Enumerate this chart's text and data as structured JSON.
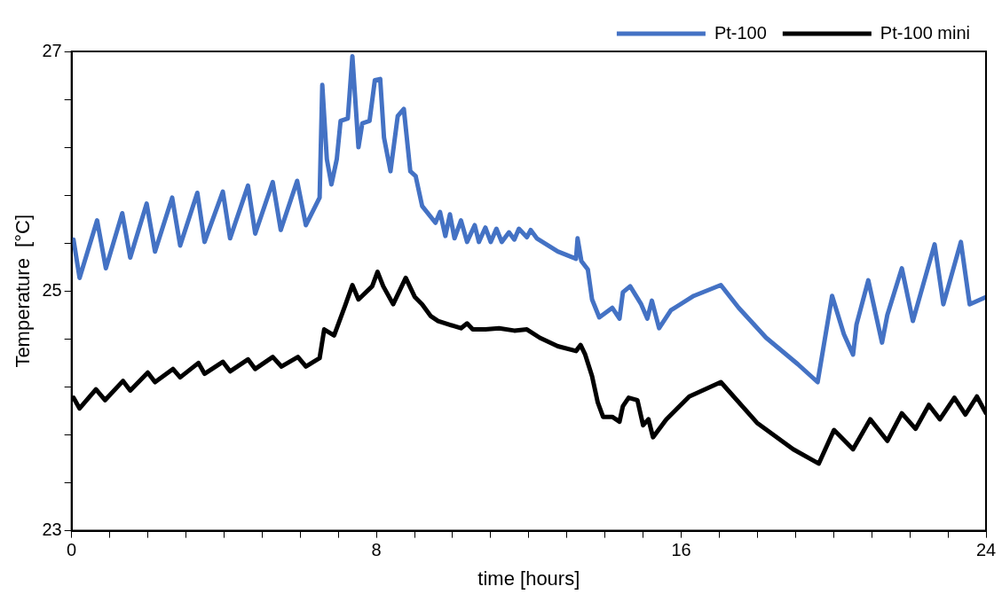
{
  "chart_data": {
    "type": "line",
    "xlabel": "time [hours]",
    "ylabel": "Temperature  [°C]",
    "xlim": [
      0,
      24
    ],
    "ylim": [
      23,
      27
    ],
    "xticks": [
      0,
      {
        "value": 1,
        "label": null
      },
      {
        "value": 2,
        "label": null
      },
      {
        "value": 3,
        "label": null
      },
      {
        "value": 4,
        "label": null
      },
      {
        "value": 5,
        "label": null
      },
      {
        "value": 6,
        "label": null
      },
      {
        "value": 7,
        "label": null
      },
      8,
      {
        "value": 9,
        "label": null
      },
      {
        "value": 10,
        "label": null
      },
      {
        "value": 11,
        "label": null
      },
      {
        "value": 12,
        "label": null
      },
      {
        "value": 13,
        "label": null
      },
      {
        "value": 14,
        "label": null
      },
      {
        "value": 15,
        "label": null
      },
      16,
      {
        "value": 17,
        "label": null
      },
      {
        "value": 18,
        "label": null
      },
      {
        "value": 19,
        "label": null
      },
      {
        "value": 20,
        "label": null
      },
      {
        "value": 21,
        "label": null
      },
      {
        "value": 22,
        "label": null
      },
      {
        "value": 23,
        "label": null
      },
      24
    ],
    "yticks": [
      23,
      {
        "value": 23.4,
        "label": null
      },
      {
        "value": 23.8,
        "label": null
      },
      {
        "value": 24.2,
        "label": null
      },
      {
        "value": 24.6,
        "label": null
      },
      25,
      {
        "value": 25.4,
        "label": null
      },
      {
        "value": 25.8,
        "label": null
      },
      {
        "value": 26.2,
        "label": null
      },
      {
        "value": 26.6,
        "label": null
      },
      27
    ],
    "grid": false,
    "legend": "top right",
    "marker": "none",
    "line_style": "solid",
    "series": [
      {
        "name": "Pt-100",
        "color": "#4472c4",
        "x": [
          0.05,
          0.21,
          0.67,
          0.9,
          1.33,
          1.54,
          1.97,
          2.19,
          2.64,
          2.85,
          3.3,
          3.49,
          3.97,
          4.16,
          4.63,
          4.82,
          5.28,
          5.49,
          5.92,
          6.15,
          6.51,
          6.58,
          6.7,
          6.82,
          6.96,
          7.06,
          7.25,
          7.37,
          7.53,
          7.63,
          7.82,
          7.96,
          8.1,
          8.2,
          8.37,
          8.56,
          8.72,
          8.89,
          9.03,
          9.2,
          9.55,
          9.67,
          9.81,
          9.93,
          10.05,
          10.22,
          10.38,
          10.58,
          10.69,
          10.86,
          11.0,
          11.15,
          11.29,
          11.48,
          11.62,
          11.74,
          11.95,
          12.05,
          12.21,
          12.76,
          13.24,
          13.28,
          13.38,
          13.55,
          13.66,
          13.85,
          14.19,
          14.38,
          14.47,
          14.66,
          14.95,
          15.11,
          15.23,
          15.42,
          15.73,
          16.33,
          17.04,
          17.51,
          18.23,
          19.06,
          19.58,
          19.96,
          20.27,
          20.51,
          20.6,
          20.91,
          21.27,
          21.41,
          21.79,
          22.08,
          22.65,
          22.88,
          23.34,
          23.57,
          24.0
        ],
        "values": [
          25.43,
          25.11,
          25.59,
          25.19,
          25.65,
          25.28,
          25.73,
          25.33,
          25.78,
          25.38,
          25.82,
          25.41,
          25.83,
          25.44,
          25.88,
          25.48,
          25.91,
          25.51,
          25.92,
          25.55,
          25.78,
          26.72,
          26.1,
          25.89,
          26.1,
          26.42,
          26.44,
          26.96,
          26.2,
          26.4,
          26.42,
          26.76,
          26.77,
          26.28,
          26.0,
          26.46,
          26.52,
          26.0,
          25.96,
          25.71,
          25.57,
          25.66,
          25.46,
          25.64,
          25.44,
          25.59,
          25.41,
          25.55,
          25.41,
          25.53,
          25.41,
          25.52,
          25.41,
          25.49,
          25.43,
          25.52,
          25.45,
          25.51,
          25.44,
          25.33,
          25.27,
          25.44,
          25.25,
          25.18,
          24.93,
          24.78,
          24.86,
          24.77,
          24.99,
          25.04,
          24.89,
          24.77,
          24.92,
          24.69,
          24.84,
          24.96,
          25.05,
          24.86,
          24.61,
          24.39,
          24.24,
          24.96,
          24.64,
          24.47,
          24.72,
          25.09,
          24.57,
          24.8,
          25.19,
          24.75,
          25.39,
          24.89,
          25.41,
          24.89,
          24.95
        ]
      },
      {
        "name": "Pt-100 mini",
        "color": "#000000",
        "x": [
          0.05,
          0.21,
          0.64,
          0.88,
          1.35,
          1.54,
          2.0,
          2.19,
          2.66,
          2.85,
          3.33,
          3.49,
          3.97,
          4.16,
          4.63,
          4.82,
          5.28,
          5.51,
          5.94,
          6.15,
          6.51,
          6.63,
          6.89,
          7.18,
          7.37,
          7.53,
          7.89,
          8.03,
          8.18,
          8.44,
          8.77,
          9.01,
          9.2,
          9.43,
          9.62,
          9.91,
          10.22,
          10.38,
          10.53,
          10.86,
          11.22,
          11.62,
          11.95,
          12.29,
          12.76,
          13.24,
          13.36,
          13.48,
          13.66,
          13.81,
          13.95,
          14.19,
          14.38,
          14.47,
          14.62,
          14.85,
          15.0,
          15.14,
          15.26,
          15.61,
          16.21,
          17.04,
          17.99,
          18.94,
          19.61,
          20.01,
          20.51,
          20.96,
          21.41,
          21.79,
          22.15,
          22.5,
          22.79,
          23.17,
          23.46,
          23.76,
          24.0
        ],
        "values": [
          24.11,
          24.02,
          24.18,
          24.09,
          24.25,
          24.17,
          24.32,
          24.24,
          24.35,
          24.28,
          24.4,
          24.31,
          24.41,
          24.33,
          24.43,
          24.35,
          24.45,
          24.37,
          24.45,
          24.37,
          24.44,
          24.68,
          24.63,
          24.88,
          25.05,
          24.93,
          25.04,
          25.16,
          25.04,
          24.89,
          25.11,
          24.95,
          24.89,
          24.79,
          24.75,
          24.72,
          24.69,
          24.73,
          24.68,
          24.68,
          24.69,
          24.67,
          24.68,
          24.61,
          24.54,
          24.5,
          24.55,
          24.47,
          24.29,
          24.07,
          23.95,
          23.95,
          23.91,
          24.04,
          24.11,
          24.09,
          23.88,
          23.93,
          23.78,
          23.93,
          24.12,
          24.24,
          23.9,
          23.68,
          23.56,
          23.84,
          23.68,
          23.93,
          23.75,
          23.98,
          23.85,
          24.05,
          23.93,
          24.11,
          23.97,
          24.12,
          23.98
        ]
      }
    ]
  }
}
